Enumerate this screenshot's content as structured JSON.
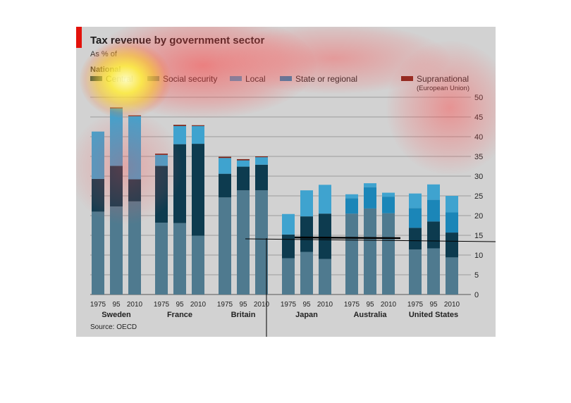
{
  "header": {
    "title": "Tax revenue by government sector",
    "subtitle": "As % of",
    "legend_heading": "National"
  },
  "legend": {
    "items": [
      {
        "label": "Central",
        "color": "#0d3b4f"
      },
      {
        "label": "Social security",
        "color": "#4f7a8f"
      },
      {
        "label": "Local",
        "color": "#3fa3cf"
      },
      {
        "label": "State or regional",
        "color": "#1b86b8"
      },
      {
        "label": "Supranational",
        "color": "#7a1e12"
      }
    ],
    "note": "(European Union)"
  },
  "source": "Source: OECD",
  "chart_data": {
    "type": "bar",
    "stacked": true,
    "title": "Tax revenue by government sector",
    "ylim": [
      0,
      50
    ],
    "yticks": [
      0,
      5,
      10,
      15,
      20,
      25,
      30,
      35,
      40,
      45,
      50
    ],
    "grid": true,
    "countries": [
      "Sweden",
      "France",
      "Britain",
      "Japan",
      "Australia",
      "United States"
    ],
    "years": [
      "1975",
      "95",
      "2010"
    ],
    "series_order": [
      "Social security",
      "Central",
      "State or regional",
      "Local",
      "Supranational"
    ],
    "values": {
      "Sweden": [
        {
          "Social security": 21,
          "Central": 8.3,
          "State or regional": 0,
          "Local": 12,
          "Supranational": 0
        },
        {
          "Social security": 22.3,
          "Central": 10.3,
          "State or regional": 0,
          "Local": 14.6,
          "Supranational": 0.2
        },
        {
          "Social security": 23.6,
          "Central": 5.6,
          "State or regional": 0,
          "Local": 16,
          "Supranational": 0.2
        }
      ],
      "France": [
        {
          "Social security": 18.2,
          "Central": 14.4,
          "State or regional": 0,
          "Local": 2.8,
          "Supranational": 0.3
        },
        {
          "Social security": 18.1,
          "Central": 20,
          "State or regional": 0,
          "Local": 4.6,
          "Supranational": 0.3
        },
        {
          "Social security": 14.9,
          "Central": 23.3,
          "State or regional": 0,
          "Local": 4.5,
          "Supranational": 0.2
        }
      ],
      "Britain": [
        {
          "Social security": 24.6,
          "Central": 6,
          "State or regional": 0,
          "Local": 4,
          "Supranational": 0.3
        },
        {
          "Social security": 26.4,
          "Central": 6,
          "State or regional": 0,
          "Local": 1.6,
          "Supranational": 0.3
        },
        {
          "Social security": 26.4,
          "Central": 6.5,
          "State or regional": 0,
          "Local": 1.9,
          "Supranational": 0.2
        }
      ],
      "Japan": [
        {
          "Social security": 9.2,
          "Central": 6,
          "State or regional": 0,
          "Local": 5.2,
          "Supranational": 0
        },
        {
          "Social security": 10.8,
          "Central": 9,
          "State or regional": 0,
          "Local": 6.6,
          "Supranational": 0
        },
        {
          "Social security": 9,
          "Central": 11.5,
          "State or regional": 0,
          "Local": 7.3,
          "Supranational": 0
        }
      ],
      "Australia": [
        {
          "Social security": 20.5,
          "Central": 0,
          "State or regional": 3.9,
          "Local": 1,
          "Supranational": 0
        },
        {
          "Social security": 21.8,
          "Central": 0,
          "State or regional": 5.4,
          "Local": 1,
          "Supranational": 0
        },
        {
          "Social security": 20.6,
          "Central": 0,
          "State or regional": 4.2,
          "Local": 1,
          "Supranational": 0
        }
      ],
      "United States": [
        {
          "Social security": 11.4,
          "Central": 5.5,
          "State or regional": 5,
          "Local": 3.7,
          "Supranational": 0
        },
        {
          "Social security": 11.7,
          "Central": 6.8,
          "State or regional": 5.5,
          "Local": 3.9,
          "Supranational": 0
        },
        {
          "Social security": 9.4,
          "Central": 6.3,
          "State or regional": 5.1,
          "Local": 4.2,
          "Supranational": 0
        }
      ]
    }
  }
}
